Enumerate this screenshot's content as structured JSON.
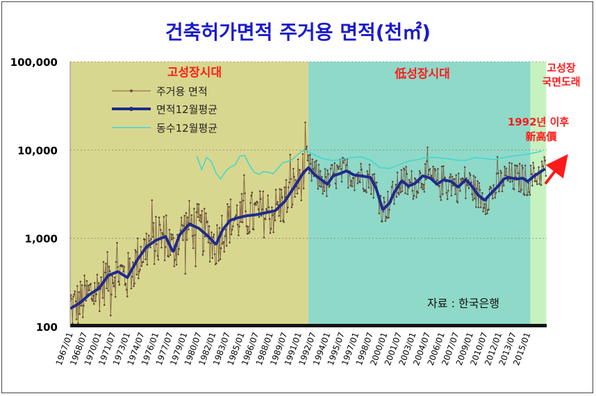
{
  "chart_data": {
    "type": "line",
    "title": "건축허가면적 주거용 면적(천㎡)",
    "y_scale": "log",
    "ylim": [
      100,
      100000
    ],
    "y_ticks": [
      {
        "value": 100,
        "label": "100"
      },
      {
        "value": 1000,
        "label": "1,000"
      },
      {
        "value": 10000,
        "label": "10,000"
      },
      {
        "value": 100000,
        "label": "100,000"
      }
    ],
    "x_range": [
      "1967/01",
      "2016/12"
    ],
    "x_tick_labels": [
      "1967/01",
      "1968/07",
      "1970/01",
      "1971/07",
      "1973/01",
      "1974/07",
      "1976/01",
      "1977/07",
      "1979/01",
      "1980/07",
      "1982/01",
      "1983/07",
      "1985/01",
      "1986/07",
      "1988/01",
      "1989/07",
      "1991/01",
      "1992/07",
      "1994/01",
      "1995/07",
      "1997/01",
      "1998/07",
      "2000/01",
      "2001/07",
      "2003/01",
      "2004/07",
      "2006/01",
      "2007/07",
      "2009/01",
      "2010/07",
      "2012/01",
      "2013/07",
      "2015/01"
    ],
    "regions": [
      {
        "label": "고성장시대",
        "start": 1967.0,
        "end": 1992.0,
        "color": "#d8d78f"
      },
      {
        "label": "低성장시대",
        "start": 1992.0,
        "end": 2015.3,
        "color": "#8fd9c8"
      },
      {
        "label": "고성장\n국면도래",
        "start": 2015.3,
        "end": 2016.95,
        "color": "#c6f2c0"
      }
    ],
    "legend": [
      "주거용 면적",
      "면적12월평균",
      "동수12월평균"
    ],
    "series": [
      {
        "name": "면적12월평균",
        "years": [
          1967.0,
          1968.0,
          1969.0,
          1970.0,
          1971.0,
          1972.0,
          1973.0,
          1974.0,
          1975.0,
          1976.0,
          1977.0,
          1977.8,
          1978.5,
          1979.5,
          1980.5,
          1981.5,
          1982.3,
          1983.0,
          1983.8,
          1984.5,
          1985.5,
          1986.5,
          1987.5,
          1988.5,
          1989.5,
          1990.5,
          1991.0,
          1991.5,
          1992.0,
          1992.7,
          1993.5,
          1994.0,
          1994.6,
          1995.3,
          1996.0,
          1996.8,
          1997.5,
          1998.5,
          1999.1,
          1999.8,
          2000.5,
          2001.0,
          2001.8,
          2002.5,
          2003.2,
          2004.0,
          2004.8,
          2005.5,
          2006.2,
          2007.0,
          2007.7,
          2008.5,
          2009.0,
          2009.8,
          2010.5,
          2011.0,
          2011.8,
          2012.5,
          2013.0,
          2013.8,
          2014.5,
          2015.0,
          2015.7,
          2016.3,
          2016.9
        ],
        "values": [
          160,
          185,
          230,
          270,
          380,
          420,
          360,
          560,
          800,
          950,
          1050,
          700,
          1100,
          1450,
          1300,
          1050,
          850,
          1250,
          1600,
          1700,
          1800,
          1850,
          1950,
          2050,
          2600,
          3800,
          4600,
          5600,
          6300,
          5200,
          4500,
          4100,
          5100,
          5400,
          5800,
          5200,
          5100,
          4900,
          3700,
          2100,
          2500,
          3300,
          4500,
          3900,
          4200,
          5100,
          4800,
          4100,
          4600,
          4400,
          3800,
          4600,
          4100,
          3100,
          2700,
          3100,
          3800,
          4700,
          4900,
          4700,
          4800,
          4400,
          5100,
          5600,
          6200
        ]
      },
      {
        "name": "동수12월평균",
        "years": [
          1980.3,
          1980.8,
          1981.3,
          1981.8,
          1982.3,
          1982.8,
          1983.3,
          1983.8,
          1984.3,
          1984.8,
          1985.3,
          1985.8,
          1986.3,
          1986.8,
          1987.3,
          1987.8,
          1988.3,
          1988.8,
          1989.3,
          1989.8,
          1990.3,
          1990.8,
          1991.3,
          1991.8,
          1992.3,
          1992.8,
          1993.5,
          1994.5,
          1995.5,
          1996.5,
          1997.5,
          1998.5,
          1999.5,
          2000.5,
          2001.5,
          2002.5,
          2003.5,
          2004.5,
          2005.5,
          2006.5,
          2007.5,
          2008.5,
          2009.5,
          2010.5,
          2011.5,
          2012.5,
          2013.5,
          2014.5,
          2015.5,
          2016.5
        ],
        "values": [
          8500,
          6000,
          8200,
          7500,
          5500,
          4700,
          5700,
          6400,
          6800,
          8500,
          8700,
          6800,
          5600,
          5300,
          5700,
          5600,
          5400,
          6200,
          7200,
          7400,
          7800,
          8700,
          9700,
          9900,
          9200,
          8600,
          8000,
          7600,
          7800,
          8200,
          8400,
          7700,
          6300,
          6200,
          6800,
          7500,
          7800,
          8300,
          8200,
          8000,
          7700,
          7600,
          8200,
          8000,
          7800,
          8200,
          8600,
          8800,
          9200,
          9700
        ]
      },
      {
        "name": "주거용 면적",
        "description_of_values": "monthly raw values oscillating around the 12-month average (range approx. 100 to 16,000)"
      }
    ]
  },
  "annotations": {
    "source": "자료 : 한국은행",
    "new_high_line1": "1992년 이후",
    "new_high_line2": "新高價"
  },
  "colors": {
    "title": "#1a1acc",
    "area_line": "#1f2a8c",
    "count_line": "#3ed6d0",
    "raw_line": "#7a5a3e",
    "region_text": "#ff1a1a",
    "arrow": "#ff1a1a"
  }
}
